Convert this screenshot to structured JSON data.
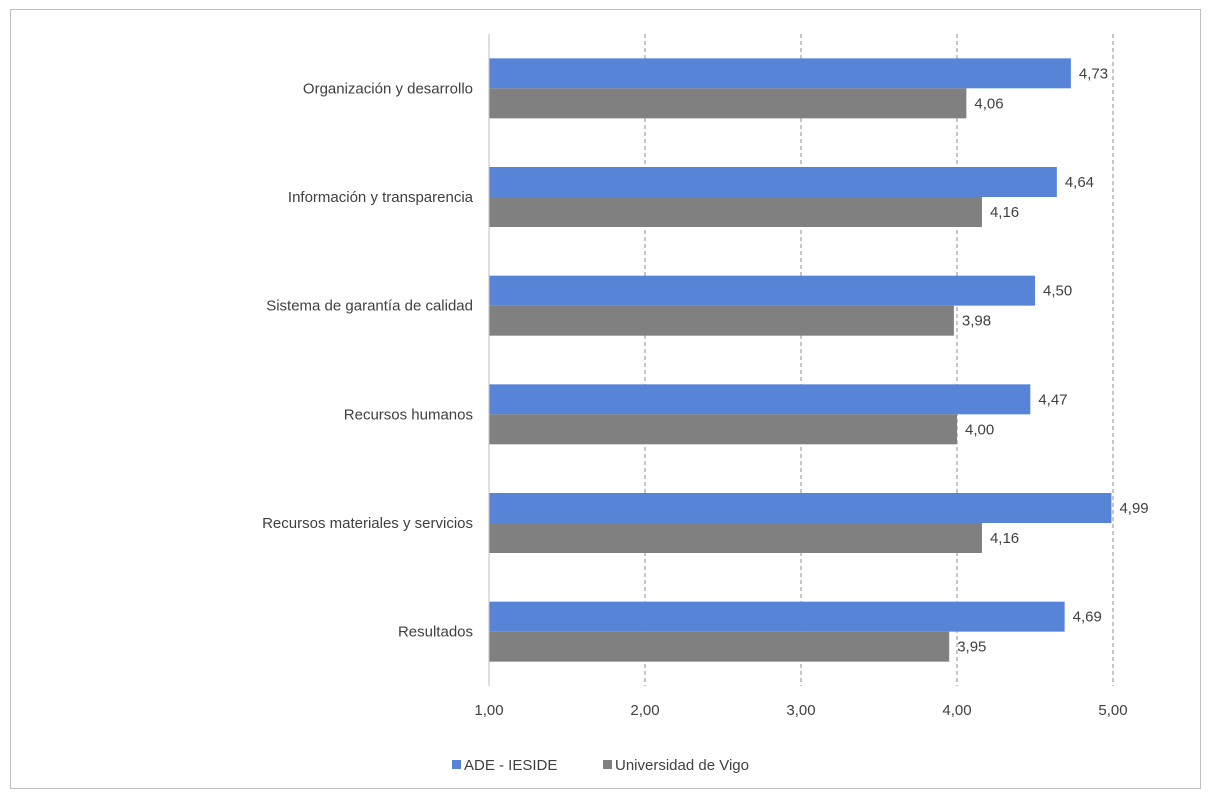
{
  "chart_data": {
    "type": "bar",
    "orientation": "horizontal",
    "title": "",
    "xlabel": "",
    "ylabel": "",
    "xlim": [
      1,
      5
    ],
    "xticks": [
      "1,00",
      "2,00",
      "3,00",
      "4,00",
      "5,00"
    ],
    "tick_values": [
      1,
      2,
      3,
      4,
      5
    ],
    "grid": "vertical dashed",
    "legend_position": "bottom",
    "categories": [
      "Organización y desarrollo",
      "Información y transparencia",
      "Sistema de garantía de calidad",
      "Recursos humanos",
      "Recursos materiales y servicios",
      "Resultados"
    ],
    "series": [
      {
        "name": "ADE - IESIDE",
        "color": "#5884d8",
        "values": [
          4.73,
          4.64,
          4.5,
          4.47,
          4.99,
          4.69
        ],
        "labels": [
          "4,73",
          "4,64",
          "4,50",
          "4,47",
          "4,99",
          "4,69"
        ]
      },
      {
        "name": "Universidad de Vigo",
        "color": "#808080",
        "values": [
          4.06,
          4.16,
          3.98,
          4.0,
          4.16,
          3.95
        ],
        "labels": [
          "4,06",
          "4,16",
          "3,98",
          "4,00",
          "4,16",
          "3,95"
        ]
      }
    ]
  }
}
